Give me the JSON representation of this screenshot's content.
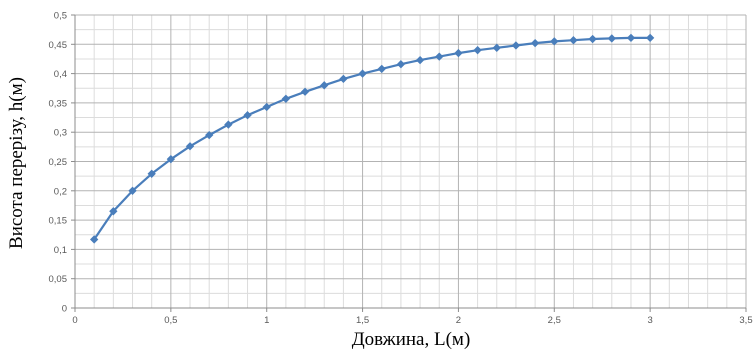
{
  "chart_data": {
    "type": "line",
    "xlabel": "Довжина, L(м)",
    "ylabel": "Висота перерізу, h(м)",
    "xlim": [
      0,
      3.5
    ],
    "ylim": [
      0,
      0.5
    ],
    "x_major_ticks": [
      0,
      0.5,
      1,
      1.5,
      2,
      2.5,
      3,
      3.5
    ],
    "x_tick_labels": [
      "0",
      "0,5",
      "1",
      "1,5",
      "2",
      "2,5",
      "3",
      "3,5"
    ],
    "y_major_ticks": [
      0,
      0.05,
      0.1,
      0.15,
      0.2,
      0.25,
      0.3,
      0.35,
      0.4,
      0.45,
      0.5
    ],
    "y_tick_labels": [
      "0",
      "0,05",
      "0,1",
      "0,15",
      "0,2",
      "0,25",
      "0,3",
      "0,35",
      "0,4",
      "0,45",
      "0,5"
    ],
    "x_minor_step": 0.1,
    "y_minor_step": 0.025,
    "grid": true,
    "legend": "none",
    "colors": {
      "series": "#4a7ebb",
      "major_grid": "#b3b3b3",
      "minor_grid": "#dcdcdc",
      "axis": "#8c8c8c"
    },
    "series": [
      {
        "x": [
          0.1,
          0.2,
          0.3,
          0.4,
          0.5,
          0.6,
          0.7,
          0.8,
          0.9,
          1.0,
          1.1,
          1.2,
          1.3,
          1.4,
          1.5,
          1.6,
          1.7,
          1.8,
          1.9,
          2.0,
          2.1,
          2.2,
          2.3,
          2.4,
          2.5,
          2.6,
          2.7,
          2.8,
          2.9,
          3.0
        ],
        "values": [
          0.117,
          0.165,
          0.2,
          0.229,
          0.254,
          0.276,
          0.295,
          0.313,
          0.329,
          0.343,
          0.357,
          0.369,
          0.38,
          0.391,
          0.4,
          0.408,
          0.416,
          0.423,
          0.429,
          0.435,
          0.44,
          0.444,
          0.448,
          0.452,
          0.455,
          0.457,
          0.459,
          0.46,
          0.461,
          0.461
        ]
      }
    ]
  }
}
